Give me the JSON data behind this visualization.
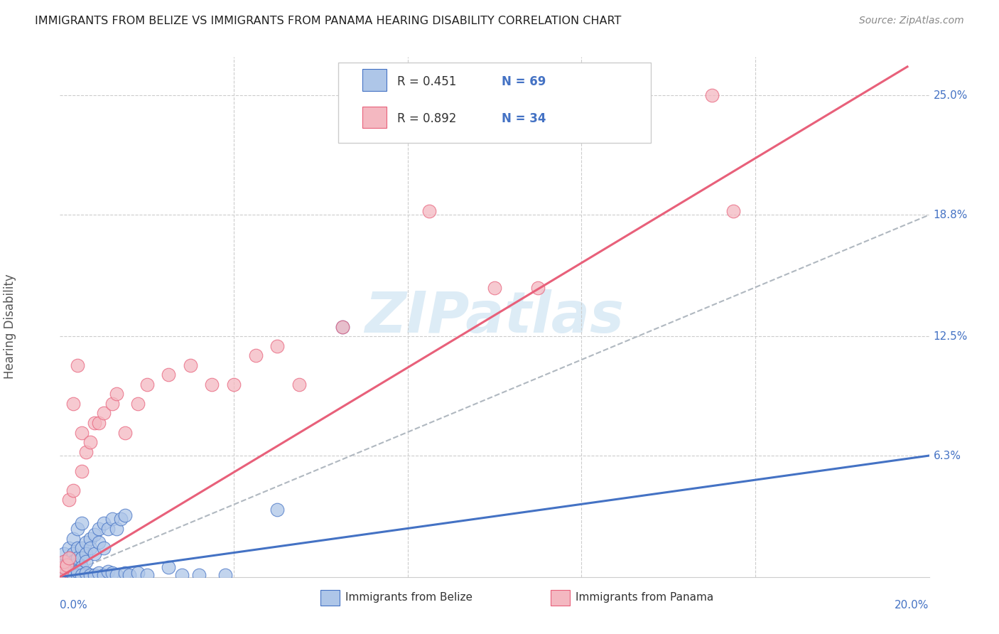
{
  "title": "IMMIGRANTS FROM BELIZE VS IMMIGRANTS FROM PANAMA HEARING DISABILITY CORRELATION CHART",
  "source": "Source: ZipAtlas.com",
  "ylabel": "Hearing Disability",
  "ytick_labels": [
    "6.3%",
    "12.5%",
    "18.8%",
    "25.0%"
  ],
  "ytick_values": [
    0.063,
    0.125,
    0.188,
    0.25
  ],
  "xlim": [
    0.0,
    0.2
  ],
  "ylim": [
    0.0,
    0.27
  ],
  "legend1_r": "R = 0.451",
  "legend1_n": "N = 69",
  "legend2_r": "R = 0.892",
  "legend2_n": "N = 34",
  "scatter_belize_color": "#aec6e8",
  "scatter_panama_color": "#f4b8c1",
  "line_belize_color": "#4472c4",
  "line_panama_color": "#e8607a",
  "trend_line_color": "#b0b8c0",
  "watermark_color": "#daeaf5",
  "background_color": "#ffffff",
  "belize_line_x": [
    0.0,
    0.2
  ],
  "belize_line_y": [
    0.0,
    0.063
  ],
  "panama_line_x": [
    0.0,
    0.195
  ],
  "panama_line_y": [
    0.0,
    0.265
  ],
  "dash_line_x": [
    0.0,
    0.2
  ],
  "dash_line_y": [
    0.0,
    0.188
  ],
  "belize_x": [
    0.0005,
    0.0008,
    0.001,
    0.001,
    0.001,
    0.0012,
    0.0015,
    0.002,
    0.002,
    0.002,
    0.0022,
    0.0025,
    0.003,
    0.003,
    0.003,
    0.003,
    0.0035,
    0.004,
    0.004,
    0.004,
    0.005,
    0.005,
    0.005,
    0.005,
    0.006,
    0.006,
    0.006,
    0.007,
    0.007,
    0.008,
    0.008,
    0.009,
    0.009,
    0.01,
    0.01,
    0.011,
    0.012,
    0.013,
    0.014,
    0.015,
    0.0005,
    0.001,
    0.001,
    0.0015,
    0.002,
    0.002,
    0.003,
    0.003,
    0.004,
    0.004,
    0.005,
    0.006,
    0.007,
    0.008,
    0.009,
    0.01,
    0.011,
    0.012,
    0.013,
    0.015,
    0.016,
    0.018,
    0.02,
    0.025,
    0.028,
    0.032,
    0.038,
    0.05,
    0.065
  ],
  "belize_y": [
    0.005,
    0.003,
    0.008,
    0.012,
    0.002,
    0.006,
    0.004,
    0.008,
    0.015,
    0.003,
    0.01,
    0.005,
    0.012,
    0.008,
    0.02,
    0.004,
    0.006,
    0.015,
    0.01,
    0.025,
    0.015,
    0.01,
    0.028,
    0.005,
    0.018,
    0.012,
    0.008,
    0.02,
    0.015,
    0.022,
    0.012,
    0.025,
    0.018,
    0.028,
    0.015,
    0.025,
    0.03,
    0.025,
    0.03,
    0.032,
    0.001,
    0.001,
    0.003,
    0.002,
    0.001,
    0.004,
    0.002,
    0.001,
    0.001,
    0.003,
    0.001,
    0.002,
    0.001,
    0.001,
    0.002,
    0.001,
    0.003,
    0.002,
    0.001,
    0.002,
    0.001,
    0.002,
    0.001,
    0.005,
    0.001,
    0.001,
    0.001,
    0.035,
    0.13
  ],
  "panama_x": [
    0.0005,
    0.001,
    0.001,
    0.0015,
    0.002,
    0.002,
    0.003,
    0.003,
    0.004,
    0.005,
    0.005,
    0.006,
    0.007,
    0.008,
    0.009,
    0.01,
    0.012,
    0.013,
    0.015,
    0.018,
    0.02,
    0.025,
    0.03,
    0.035,
    0.04,
    0.045,
    0.05,
    0.055,
    0.065,
    0.085,
    0.1,
    0.11,
    0.15,
    0.155
  ],
  "panama_y": [
    0.003,
    0.005,
    0.008,
    0.006,
    0.01,
    0.04,
    0.045,
    0.09,
    0.11,
    0.055,
    0.075,
    0.065,
    0.07,
    0.08,
    0.08,
    0.085,
    0.09,
    0.095,
    0.075,
    0.09,
    0.1,
    0.105,
    0.11,
    0.1,
    0.1,
    0.115,
    0.12,
    0.1,
    0.13,
    0.19,
    0.15,
    0.15,
    0.25,
    0.19
  ]
}
